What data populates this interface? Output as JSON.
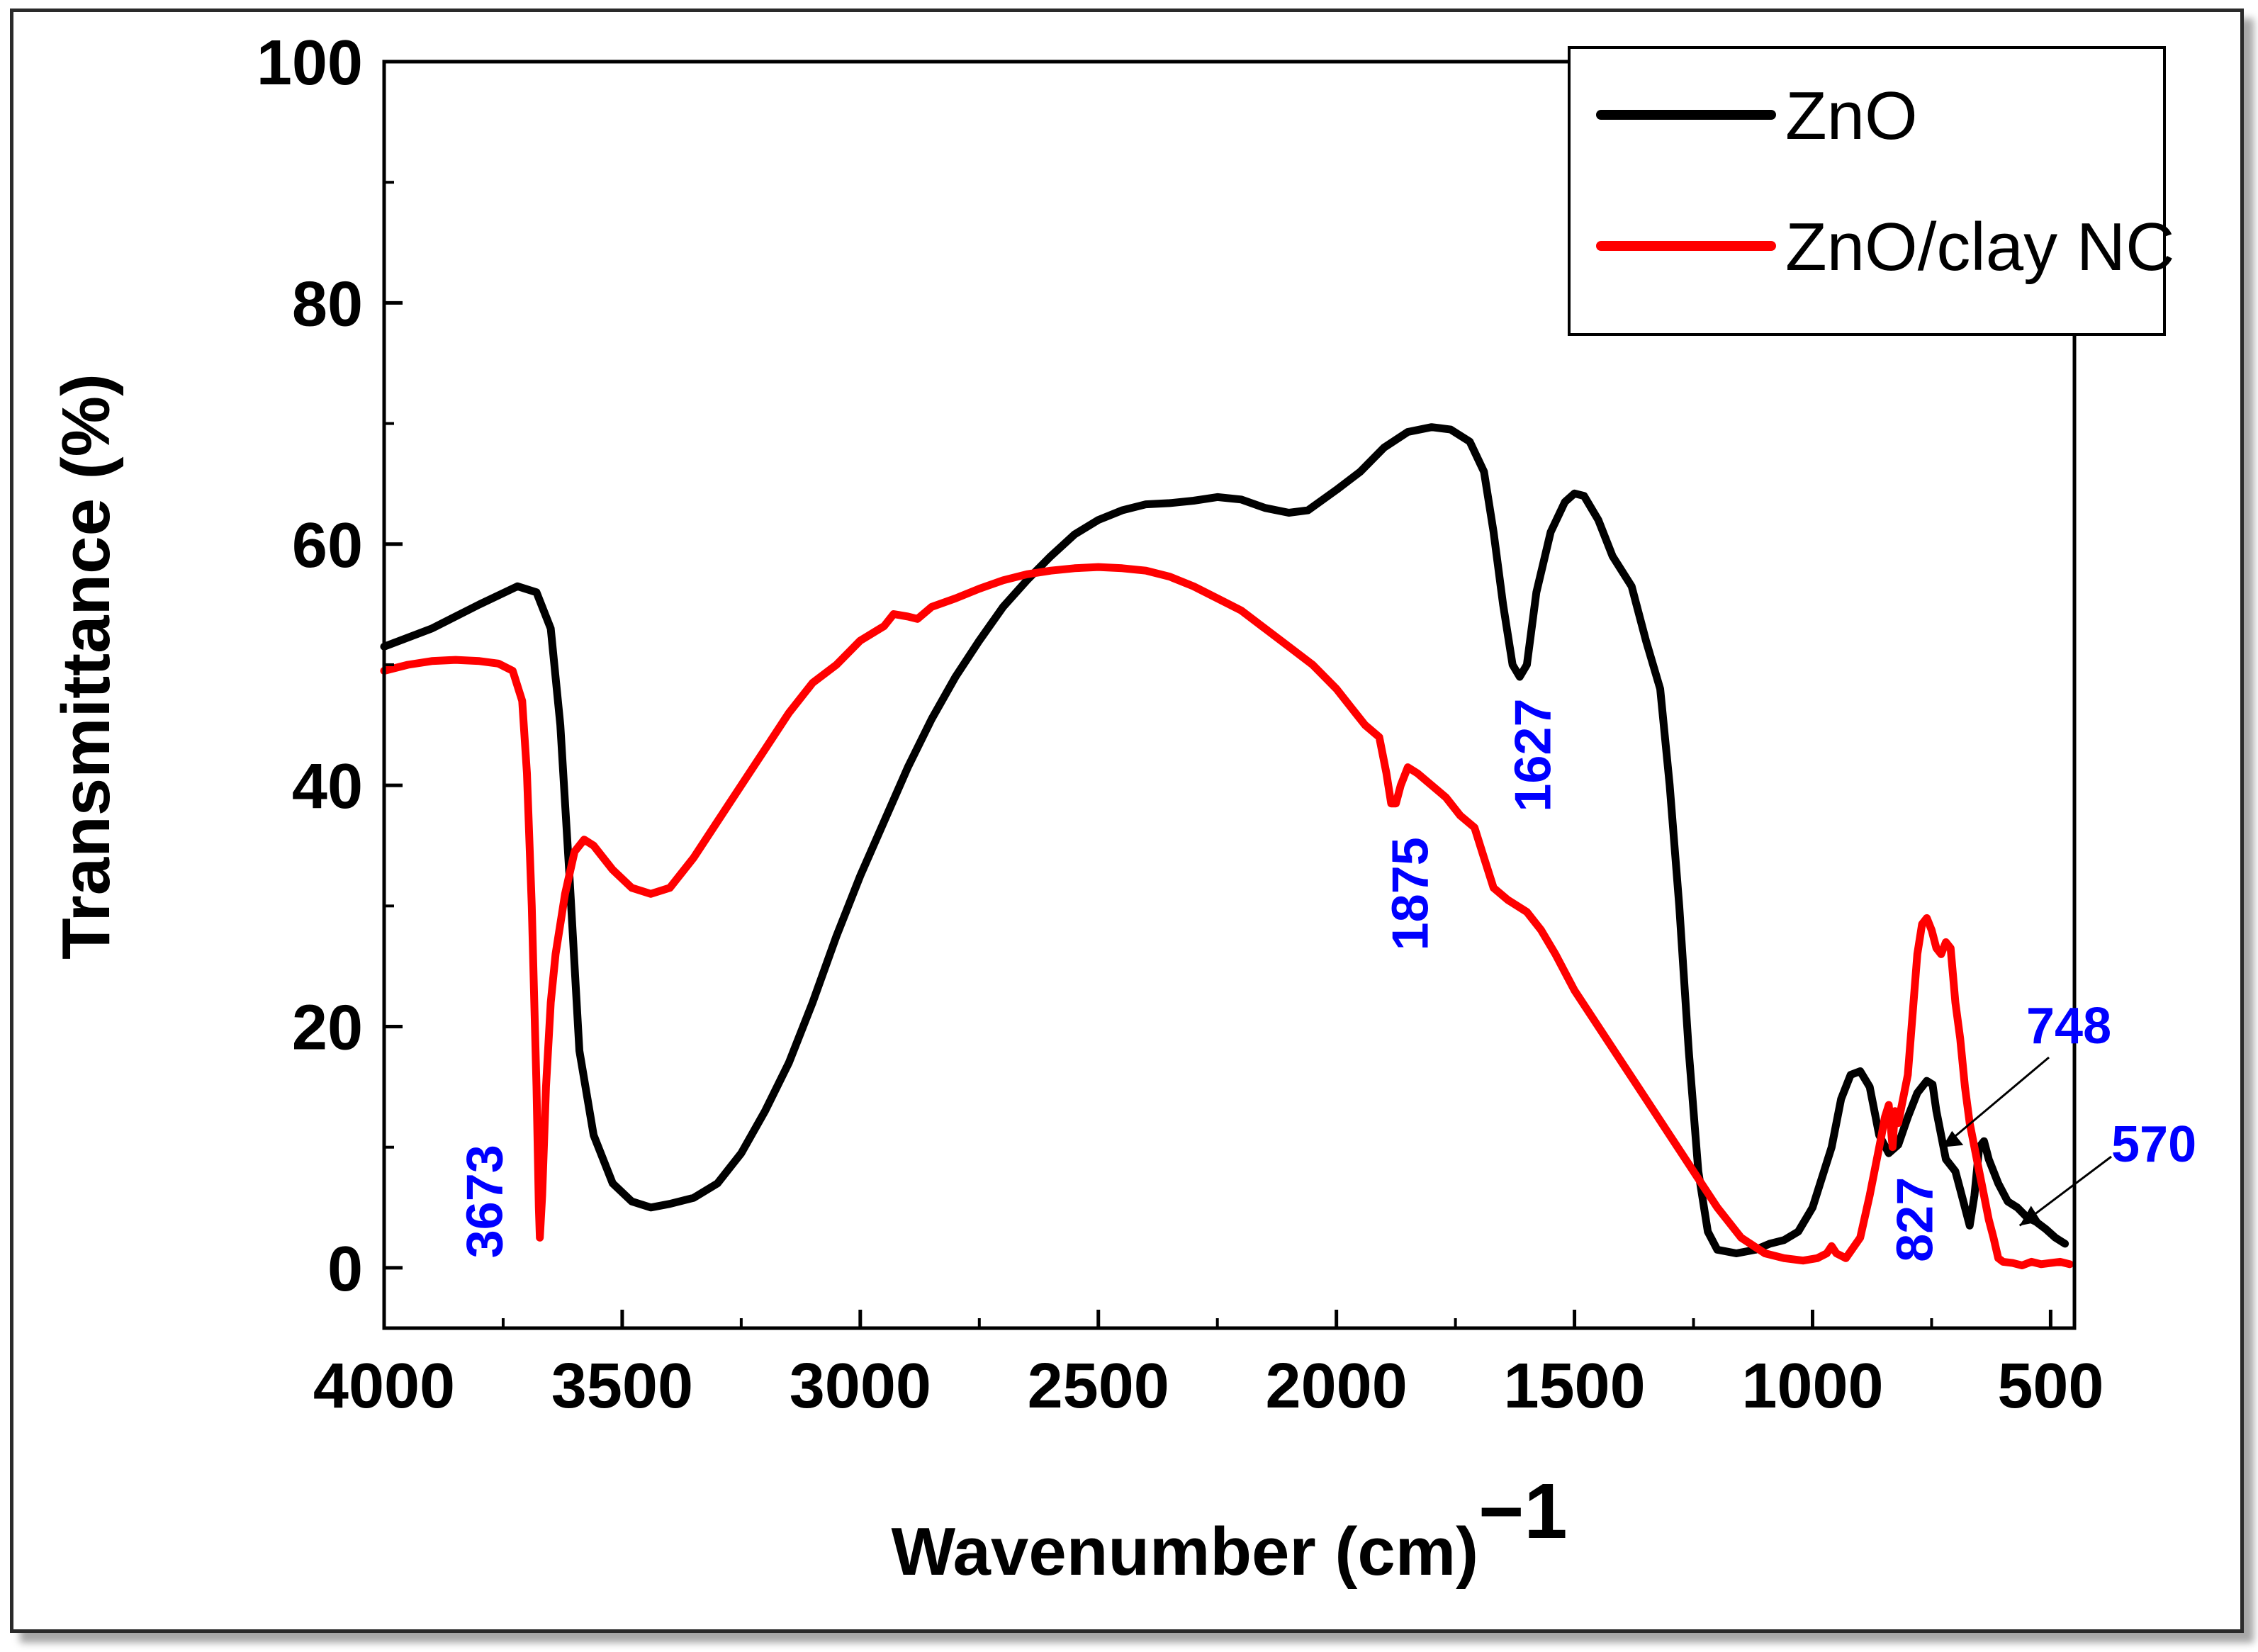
{
  "chart_data": {
    "type": "line",
    "title": "",
    "xlabel": "Wavenumber (cm)",
    "xlabel_superscript": "−1",
    "ylabel": "Transmittance (%)",
    "xlim": [
      4000,
      450
    ],
    "ylim": [
      -5,
      100
    ],
    "x_ticks": [
      4000,
      3500,
      3000,
      2500,
      2000,
      1500,
      1000,
      500
    ],
    "y_ticks": [
      0,
      20,
      40,
      60,
      80,
      100
    ],
    "legend_position": "top-right",
    "series": [
      {
        "name": "ZnO",
        "color": "#000000",
        "points": [
          [
            4000,
            51.5
          ],
          [
            3900,
            53
          ],
          [
            3800,
            55
          ],
          [
            3720,
            56.5
          ],
          [
            3680,
            56
          ],
          [
            3650,
            53
          ],
          [
            3630,
            45
          ],
          [
            3610,
            32
          ],
          [
            3590,
            18
          ],
          [
            3560,
            11
          ],
          [
            3520,
            7
          ],
          [
            3480,
            5.5
          ],
          [
            3440,
            5
          ],
          [
            3400,
            5.3
          ],
          [
            3350,
            5.8
          ],
          [
            3300,
            7
          ],
          [
            3250,
            9.5
          ],
          [
            3200,
            13
          ],
          [
            3150,
            17
          ],
          [
            3100,
            22
          ],
          [
            3050,
            27.5
          ],
          [
            3000,
            32.5
          ],
          [
            2950,
            37
          ],
          [
            2900,
            41.5
          ],
          [
            2850,
            45.5
          ],
          [
            2800,
            49
          ],
          [
            2750,
            52
          ],
          [
            2700,
            54.8
          ],
          [
            2650,
            57
          ],
          [
            2600,
            59
          ],
          [
            2550,
            60.8
          ],
          [
            2500,
            62
          ],
          [
            2450,
            62.8
          ],
          [
            2400,
            63.3
          ],
          [
            2350,
            63.4
          ],
          [
            2300,
            63.6
          ],
          [
            2250,
            63.9
          ],
          [
            2200,
            63.7
          ],
          [
            2150,
            63
          ],
          [
            2100,
            62.6
          ],
          [
            2060,
            62.8
          ],
          [
            2000,
            64.5
          ],
          [
            1950,
            66
          ],
          [
            1900,
            68
          ],
          [
            1850,
            69.3
          ],
          [
            1800,
            69.7
          ],
          [
            1760,
            69.5
          ],
          [
            1720,
            68.5
          ],
          [
            1690,
            66
          ],
          [
            1670,
            61
          ],
          [
            1650,
            55
          ],
          [
            1630,
            50
          ],
          [
            1615,
            49
          ],
          [
            1600,
            50
          ],
          [
            1580,
            56
          ],
          [
            1550,
            61
          ],
          [
            1520,
            63.5
          ],
          [
            1500,
            64.2
          ],
          [
            1480,
            64
          ],
          [
            1450,
            62
          ],
          [
            1420,
            59
          ],
          [
            1380,
            56.5
          ],
          [
            1350,
            52
          ],
          [
            1320,
            48
          ],
          [
            1300,
            40
          ],
          [
            1280,
            30
          ],
          [
            1260,
            18
          ],
          [
            1240,
            8
          ],
          [
            1220,
            3
          ],
          [
            1200,
            1.5
          ],
          [
            1160,
            1.2
          ],
          [
            1120,
            1.5
          ],
          [
            1090,
            2
          ],
          [
            1060,
            2.3
          ],
          [
            1030,
            3
          ],
          [
            1000,
            5
          ],
          [
            980,
            7.5
          ],
          [
            960,
            10
          ],
          [
            940,
            14
          ],
          [
            920,
            16
          ],
          [
            900,
            16.3
          ],
          [
            880,
            15
          ],
          [
            860,
            11
          ],
          [
            840,
            9.5
          ],
          [
            820,
            10.2
          ],
          [
            800,
            12.5
          ],
          [
            780,
            14.5
          ],
          [
            760,
            15.5
          ],
          [
            748,
            15.2
          ],
          [
            740,
            13
          ],
          [
            720,
            9
          ],
          [
            700,
            8
          ],
          [
            690,
            6.5
          ],
          [
            680,
            5
          ],
          [
            670,
            3.5
          ],
          [
            660,
            6
          ],
          [
            650,
            10
          ],
          [
            640,
            10.5
          ],
          [
            630,
            9
          ],
          [
            610,
            7
          ],
          [
            590,
            5.5
          ],
          [
            570,
            5
          ],
          [
            550,
            4.2
          ],
          [
            530,
            3.8
          ],
          [
            510,
            3.2
          ],
          [
            490,
            2.5
          ],
          [
            470,
            2
          ]
        ]
      },
      {
        "name": "ZnO/clay NC",
        "color": "#ff0000",
        "points": [
          [
            4000,
            49.5
          ],
          [
            3950,
            50
          ],
          [
            3900,
            50.3
          ],
          [
            3850,
            50.4
          ],
          [
            3800,
            50.3
          ],
          [
            3760,
            50.1
          ],
          [
            3730,
            49.5
          ],
          [
            3710,
            47
          ],
          [
            3700,
            41
          ],
          [
            3690,
            30
          ],
          [
            3680,
            15
          ],
          [
            3675,
            5
          ],
          [
            3673,
            2.5
          ],
          [
            3668,
            6
          ],
          [
            3660,
            15
          ],
          [
            3650,
            22
          ],
          [
            3640,
            26
          ],
          [
            3620,
            31
          ],
          [
            3600,
            34.5
          ],
          [
            3580,
            35.5
          ],
          [
            3560,
            35
          ],
          [
            3520,
            33
          ],
          [
            3480,
            31.5
          ],
          [
            3440,
            31
          ],
          [
            3400,
            31.5
          ],
          [
            3350,
            34
          ],
          [
            3300,
            37
          ],
          [
            3250,
            40
          ],
          [
            3200,
            43
          ],
          [
            3150,
            46
          ],
          [
            3100,
            48.5
          ],
          [
            3050,
            50
          ],
          [
            3000,
            52
          ],
          [
            2950,
            53.2
          ],
          [
            2930,
            54.2
          ],
          [
            2900,
            54
          ],
          [
            2880,
            53.8
          ],
          [
            2850,
            54.8
          ],
          [
            2800,
            55.5
          ],
          [
            2750,
            56.3
          ],
          [
            2700,
            57
          ],
          [
            2650,
            57.5
          ],
          [
            2600,
            57.8
          ],
          [
            2550,
            58
          ],
          [
            2500,
            58.1
          ],
          [
            2450,
            58
          ],
          [
            2400,
            57.8
          ],
          [
            2350,
            57.3
          ],
          [
            2300,
            56.5
          ],
          [
            2250,
            55.5
          ],
          [
            2200,
            54.5
          ],
          [
            2150,
            53
          ],
          [
            2100,
            51.5
          ],
          [
            2050,
            50
          ],
          [
            2000,
            48
          ],
          [
            1970,
            46.5
          ],
          [
            1940,
            45
          ],
          [
            1910,
            44
          ],
          [
            1895,
            41
          ],
          [
            1885,
            38.5
          ],
          [
            1875,
            38.5
          ],
          [
            1865,
            40
          ],
          [
            1850,
            41.5
          ],
          [
            1830,
            41
          ],
          [
            1800,
            40
          ],
          [
            1770,
            39
          ],
          [
            1740,
            37.5
          ],
          [
            1710,
            36.5
          ],
          [
            1690,
            34
          ],
          [
            1670,
            31.5
          ],
          [
            1640,
            30.5
          ],
          [
            1620,
            30
          ],
          [
            1600,
            29.5
          ],
          [
            1570,
            28
          ],
          [
            1540,
            26
          ],
          [
            1500,
            23
          ],
          [
            1450,
            20
          ],
          [
            1400,
            17
          ],
          [
            1350,
            14
          ],
          [
            1300,
            11
          ],
          [
            1250,
            8
          ],
          [
            1200,
            5
          ],
          [
            1150,
            2.5
          ],
          [
            1100,
            1.2
          ],
          [
            1060,
            0.8
          ],
          [
            1020,
            0.6
          ],
          [
            990,
            0.8
          ],
          [
            970,
            1.2
          ],
          [
            960,
            1.8
          ],
          [
            950,
            1.2
          ],
          [
            930,
            0.8
          ],
          [
            900,
            2.5
          ],
          [
            880,
            6
          ],
          [
            865,
            9
          ],
          [
            855,
            11
          ],
          [
            848,
            12.5
          ],
          [
            840,
            13.5
          ],
          [
            832,
            10
          ],
          [
            827,
            13
          ],
          [
            820,
            12
          ],
          [
            810,
            14
          ],
          [
            800,
            16
          ],
          [
            790,
            21
          ],
          [
            780,
            26
          ],
          [
            770,
            28.5
          ],
          [
            760,
            29
          ],
          [
            750,
            28
          ],
          [
            740,
            26.5
          ],
          [
            730,
            26
          ],
          [
            720,
            27
          ],
          [
            710,
            26.5
          ],
          [
            700,
            22
          ],
          [
            690,
            19
          ],
          [
            680,
            15
          ],
          [
            670,
            12
          ],
          [
            660,
            10
          ],
          [
            650,
            8
          ],
          [
            640,
            6
          ],
          [
            630,
            4
          ],
          [
            620,
            2.5
          ],
          [
            610,
            0.8
          ],
          [
            600,
            0.5
          ],
          [
            580,
            0.4
          ],
          [
            560,
            0.2
          ],
          [
            540,
            0.5
          ],
          [
            520,
            0.3
          ],
          [
            500,
            0.4
          ],
          [
            480,
            0.5
          ],
          [
            460,
            0.3
          ]
        ]
      }
    ],
    "annotations": [
      {
        "text": "3673",
        "x": 3673,
        "color": "#0000ff"
      },
      {
        "text": "1875",
        "x": 1875,
        "color": "#0000ff"
      },
      {
        "text": "1627",
        "x": 1627,
        "color": "#0000ff"
      },
      {
        "text": "827",
        "x": 827,
        "color": "#0000ff"
      },
      {
        "text": "748",
        "x": 748,
        "color": "#0000ff"
      },
      {
        "text": "570",
        "x": 570,
        "color": "#0000ff"
      }
    ]
  }
}
